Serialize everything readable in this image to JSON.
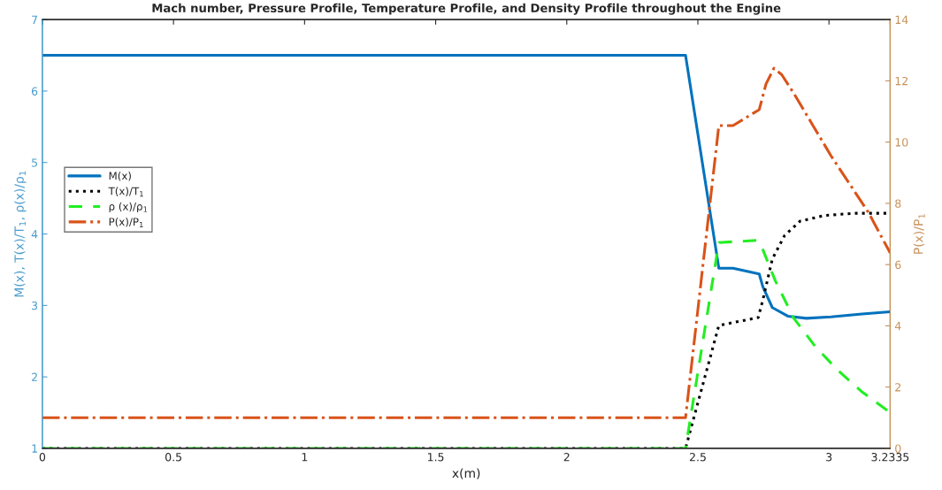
{
  "chart_data": {
    "type": "line",
    "title": "Mach number, Pressure Profile, Temperature Profile, and Density Profile throughout the Engine",
    "xlabel": "x(m)",
    "ylabel": "M(x), T(x)/T$_{1}$, ρ(x)/ρ$_{1}$",
    "y2label": "P(x)/P$_{1}$",
    "xlim": [
      0,
      3.2335
    ],
    "xticks": [
      0,
      0.5,
      1,
      1.5,
      2,
      2.5,
      3,
      3.2335
    ],
    "ylim": [
      1,
      7
    ],
    "yticks": [
      1,
      2,
      3,
      4,
      5,
      6,
      7
    ],
    "y2lim": [
      0,
      14
    ],
    "y2ticks": [
      0,
      2,
      4,
      6,
      8,
      10,
      12,
      14
    ],
    "grid": false,
    "legend": "left",
    "series": [
      {
        "name": "M(x)",
        "color": "#0072bd",
        "line_style": "solid",
        "x": [
          0,
          2.453,
          2.58,
          2.634,
          2.734,
          2.748,
          2.784,
          2.843,
          2.914,
          3.008,
          3.126,
          3.2335
        ],
        "values": [
          6.5,
          6.5,
          3.52,
          3.52,
          3.44,
          3.26,
          2.97,
          2.85,
          2.82,
          2.84,
          2.88,
          2.91
        ]
      },
      {
        "name": "T(x)/T$_{1}$",
        "color": "#000000",
        "line_style": "dotted",
        "x": [
          0,
          2.453,
          2.58,
          2.73,
          2.748,
          2.784,
          2.831,
          2.89,
          2.985,
          3.103,
          3.2335
        ],
        "values": [
          1,
          1,
          2.72,
          2.83,
          3.08,
          3.65,
          3.98,
          4.18,
          4.26,
          4.29,
          4.29
        ]
      },
      {
        "name": "ρ (x)/ρ$_{1}$",
        "color": "#22ee22",
        "line_style": "dashed",
        "x": [
          0,
          2.453,
          2.58,
          2.725,
          2.748,
          2.796,
          2.866,
          2.949,
          3.032,
          3.126,
          3.2335
        ],
        "values": [
          1,
          1,
          3.88,
          3.91,
          3.78,
          3.34,
          2.82,
          2.42,
          2.1,
          1.79,
          1.5
        ]
      },
      {
        "name": "P(x)/P$_{1}$",
        "color": "#d95319",
        "line_style": "dashdot",
        "axis": "y2",
        "x": [
          0,
          2.453,
          2.58,
          2.634,
          2.734,
          2.76,
          2.79,
          2.82,
          2.866,
          2.937,
          3.008,
          3.079,
          3.15,
          3.2335
        ],
        "values": [
          1,
          1,
          10.54,
          10.54,
          11.06,
          11.9,
          12.41,
          12.2,
          11.59,
          10.57,
          9.55,
          8.63,
          7.71,
          6.38
        ]
      }
    ]
  }
}
